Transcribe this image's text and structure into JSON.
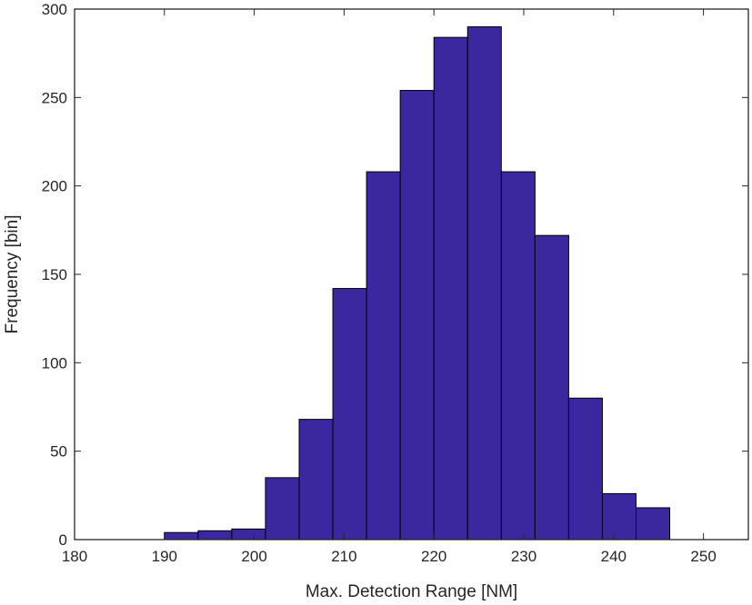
{
  "chart_data": {
    "type": "bar",
    "xlabel": "Max. Detection Range [NM]",
    "ylabel": "Frequency [bin]",
    "xlim": [
      180,
      255
    ],
    "ylim": [
      0,
      300
    ],
    "xticks": [
      180,
      190,
      200,
      210,
      220,
      230,
      240,
      250
    ],
    "yticks": [
      0,
      50,
      100,
      150,
      200,
      250,
      300
    ],
    "bin_width": 3.75,
    "bin_edges": [
      190,
      193.75,
      197.5,
      201.25,
      205,
      208.75,
      212.5,
      216.25,
      220,
      223.75,
      227.5,
      231.25,
      235,
      238.75,
      242.5,
      246.25
    ],
    "values": [
      4,
      5,
      6,
      35,
      68,
      142,
      208,
      254,
      284,
      290,
      208,
      172,
      80,
      26,
      18
    ],
    "bar_color": "#3b27a0",
    "bar_edge_color": "#000000",
    "grid": false,
    "box": true
  }
}
